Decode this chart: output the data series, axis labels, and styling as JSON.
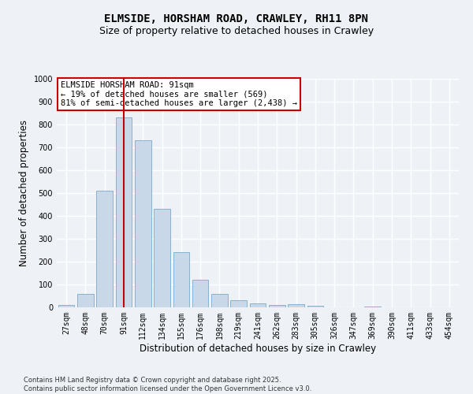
{
  "title": "ELMSIDE, HORSHAM ROAD, CRAWLEY, RH11 8PN",
  "subtitle": "Size of property relative to detached houses in Crawley",
  "xlabel": "Distribution of detached houses by size in Crawley",
  "ylabel": "Number of detached properties",
  "categories": [
    "27sqm",
    "48sqm",
    "70sqm",
    "91sqm",
    "112sqm",
    "134sqm",
    "155sqm",
    "176sqm",
    "198sqm",
    "219sqm",
    "241sqm",
    "262sqm",
    "283sqm",
    "305sqm",
    "326sqm",
    "347sqm",
    "369sqm",
    "390sqm",
    "411sqm",
    "433sqm",
    "454sqm"
  ],
  "values": [
    10,
    60,
    510,
    830,
    730,
    430,
    240,
    120,
    58,
    32,
    18,
    10,
    15,
    7,
    0,
    0,
    5,
    0,
    0,
    0,
    0
  ],
  "bar_color": "#c8d8e8",
  "bar_edge_color": "#7aaac8",
  "vline_x_index": 3,
  "vline_color": "#cc0000",
  "annotation_title": "ELMSIDE HORSHAM ROAD: 91sqm",
  "annotation_line2": "← 19% of detached houses are smaller (569)",
  "annotation_line3": "81% of semi-detached houses are larger (2,438) →",
  "annotation_box_color": "#ffffff",
  "annotation_box_edge": "#cc0000",
  "ylim": [
    0,
    1000
  ],
  "yticks": [
    0,
    100,
    200,
    300,
    400,
    500,
    600,
    700,
    800,
    900,
    1000
  ],
  "background_color": "#eef2f7",
  "grid_color": "#ffffff",
  "footer_line1": "Contains HM Land Registry data © Crown copyright and database right 2025.",
  "footer_line2": "Contains public sector information licensed under the Open Government Licence v3.0.",
  "title_fontsize": 10,
  "subtitle_fontsize": 9,
  "tick_fontsize": 7,
  "ylabel_fontsize": 8.5,
  "xlabel_fontsize": 8.5,
  "annotation_fontsize": 7.5,
  "footer_fontsize": 6
}
